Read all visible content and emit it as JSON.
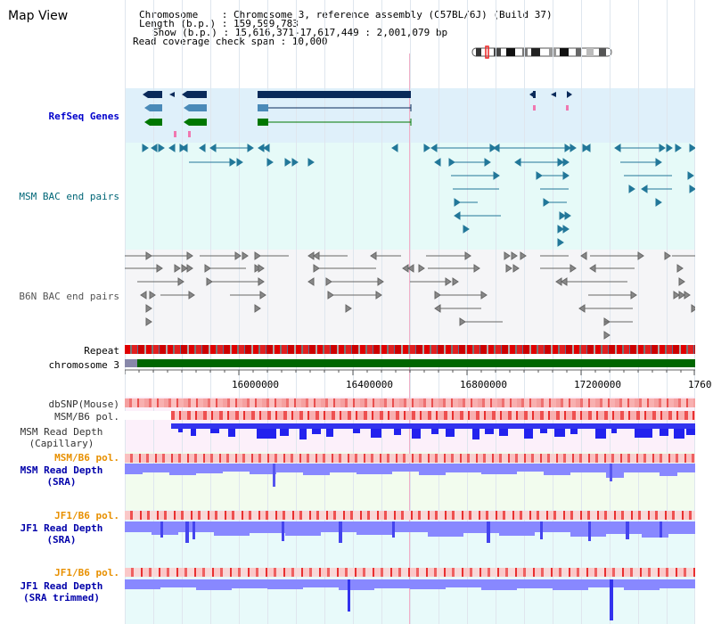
{
  "header": {
    "title": "Map View",
    "chromosome_line": "Chromosome    : Chromosome 3, reference assembly (C57BL/6J) (Build 37)",
    "length_line": "Length (b.p.) : 159,599,783",
    "show_line": "Show (b.p.) : 15,616,371-17,617,449 : 2,001,079 bp",
    "coverage_line": "Read coverage check span : 10,000"
  },
  "tracks": {
    "refseq": "RefSeq Genes",
    "msm_bac": "MSM BAC end pairs",
    "b6n_bac": "B6N BAC end pairs",
    "repeat": "Repeat",
    "chromosome": "chromosome 3",
    "dbsnp": "dbSNP(Mouse)",
    "msm_pol": "MSM/B6 pol.",
    "msm_depth_cap_1": "MSM Read Depth",
    "msm_depth_cap_2": "(Capillary)",
    "msm_pol_2": "MSM/B6 pol.",
    "msm_depth_sra_1": "MSM Read Depth",
    "msm_depth_sra_2": "(SRA)",
    "jf1_pol": "JF1/B6 pol.",
    "jf1_depth_1": "JF1 Read Depth",
    "jf1_depth_2": "(SRA)",
    "jf1_pol_2": "JF1/B6 pol.",
    "jf1_trim_1": "JF1 Read Depth",
    "jf1_trim_2": "(SRA trimmed)"
  },
  "axis": {
    "ticks": [
      "16000000",
      "16400000",
      "16800000",
      "17200000",
      "1760"
    ]
  },
  "colors": {
    "refseq_bg": "#dff0fa",
    "msm_bac_bg": "#e6faf8",
    "b6n_bg": "#f5f5f7",
    "pink_bg": "#fcf0fa",
    "green_bg": "#f2fcee",
    "cyan_bg": "#e8fafa",
    "label_blue": "#0000cc",
    "label_teal": "#006677",
    "label_orange": "#e89000",
    "label_gray": "#333333",
    "gene_dark": "#0a2a5a",
    "gene_mid": "#4a8ab8",
    "gene_green": "#006600",
    "bac_teal": "#227799",
    "depth_blue": "#2222ee",
    "depth_light": "#8888ff",
    "snp_red": "#e83030",
    "chrom_green": "#006600"
  },
  "icons": {
    "ideogram": "chromosome-ideogram-icon"
  }
}
